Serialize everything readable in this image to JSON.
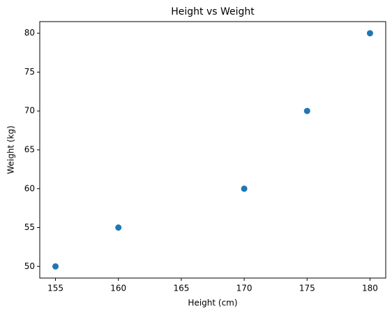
{
  "chart_data": {
    "type": "scatter",
    "title": "Height vs Weight",
    "x_label": "Height (cm)",
    "y_label": "Weight (kg)",
    "x": [
      155,
      160,
      170,
      175,
      180
    ],
    "values": [
      50,
      55,
      60,
      70,
      80
    ],
    "color": "#1f77b4",
    "xlim": [
      153.75,
      181.25
    ],
    "ylim": [
      48.5,
      81.5
    ],
    "xticks": [
      155,
      160,
      165,
      170,
      175,
      180
    ],
    "yticks": [
      50,
      55,
      60,
      65,
      70,
      75,
      80
    ],
    "grid": false
  }
}
